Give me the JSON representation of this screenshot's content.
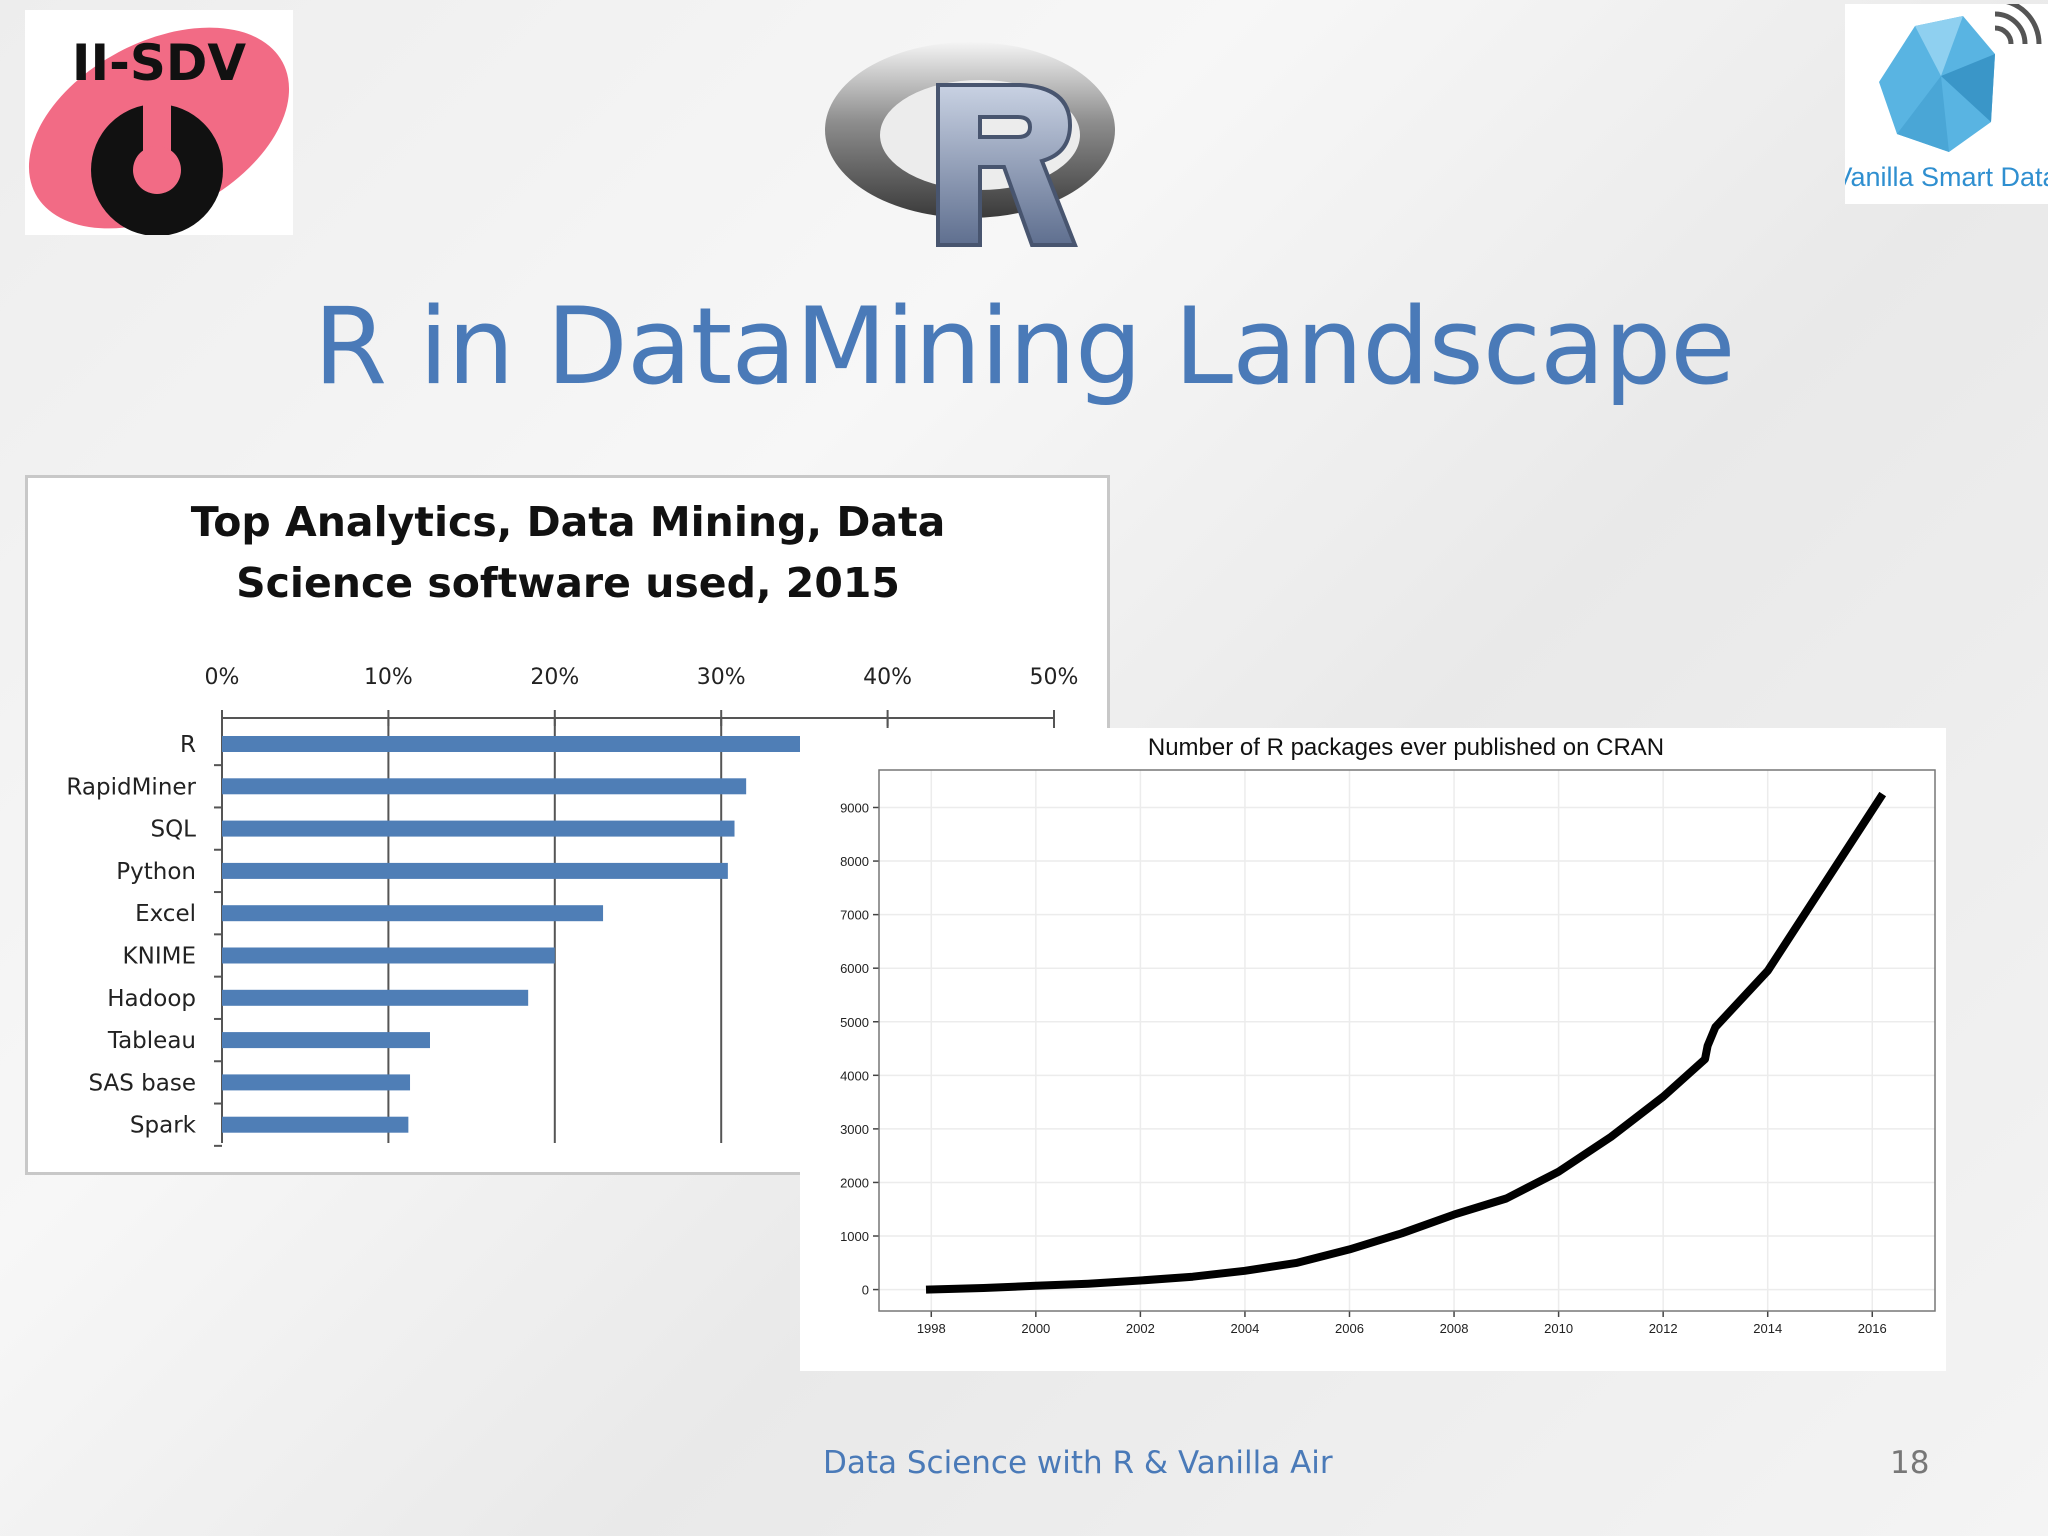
{
  "logos": {
    "left_text": "II-SDV",
    "right_text": "Vanilla Smart Data"
  },
  "slide": {
    "title": "R in DataMining Landscape",
    "footer": "Data Science with R & Vanilla Air",
    "page_number": "18"
  },
  "colors": {
    "title": "#4a7ab8",
    "bar": "#4f7eb6",
    "pink": "#f26b85"
  },
  "chart_data": [
    {
      "type": "bar",
      "orientation": "horizontal",
      "title_lines": [
        "Top Analytics, Data Mining, Data",
        "Science software used, 2015"
      ],
      "categories": [
        "R",
        "RapidMiner",
        "SQL",
        "Python",
        "Excel",
        "KNIME",
        "Hadoop",
        "Tableau",
        "SAS base",
        "Spark"
      ],
      "values": [
        35,
        31.5,
        30.8,
        30.4,
        22.9,
        20,
        18.4,
        12.5,
        11.3,
        11.2
      ],
      "xlim": [
        0,
        50
      ],
      "x_ticks": [
        0,
        10,
        20,
        30,
        40,
        50
      ],
      "x_tick_labels": [
        "0%",
        "10%",
        "20%",
        "30%",
        "40%",
        "50%"
      ],
      "grid": true
    },
    {
      "type": "line",
      "title": "Number of R packages ever published on CRAN",
      "x": [
        1997.9,
        1999,
        2000,
        2001,
        2002,
        2003,
        2004,
        2005,
        2006,
        2007,
        2008,
        2009,
        2010,
        2011,
        2012,
        2012.8,
        2012.85,
        2013,
        2014,
        2015,
        2016.2
      ],
      "y": [
        0,
        30,
        70,
        110,
        170,
        240,
        350,
        500,
        750,
        1050,
        1400,
        1700,
        2200,
        2850,
        3600,
        4300,
        4550,
        4900,
        5950,
        7450,
        9250
      ],
      "xlim": [
        1997,
        2017.2
      ],
      "ylim": [
        -400,
        9700
      ],
      "x_ticks": [
        1998,
        2000,
        2002,
        2004,
        2006,
        2008,
        2010,
        2012,
        2014,
        2016
      ],
      "x_tick_labels": [
        "1998",
        "2000",
        "2002",
        "2004",
        "2006",
        "2008",
        "2010",
        "2012",
        "2014",
        "2016"
      ],
      "y_ticks": [
        0,
        1000,
        2000,
        3000,
        4000,
        5000,
        6000,
        7000,
        8000,
        9000
      ],
      "y_tick_labels": [
        "0",
        "1000",
        "2000",
        "3000",
        "4000",
        "5000",
        "6000",
        "7000",
        "8000",
        "9000"
      ],
      "grid": true
    }
  ]
}
